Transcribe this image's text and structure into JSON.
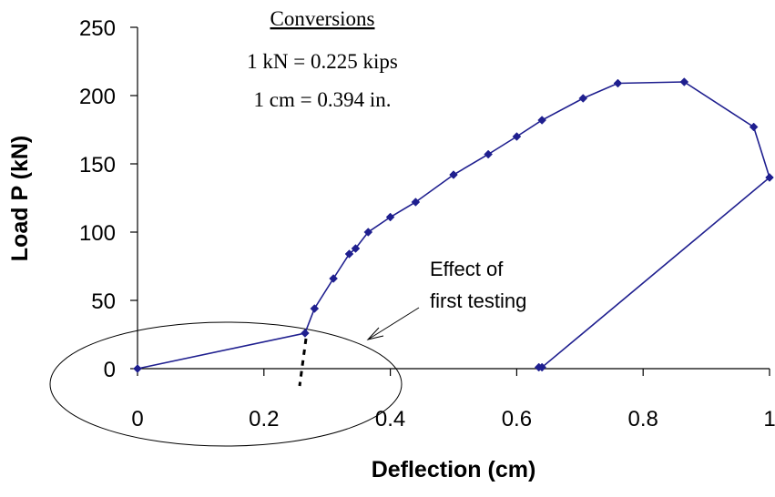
{
  "chart_data": {
    "type": "scatter",
    "xlabel": "Deflection (cm)",
    "ylabel": "Load P (kN)",
    "xlim": [
      0,
      1
    ],
    "ylim": [
      0,
      250
    ],
    "xticks": [
      "0",
      "0.2",
      "0.4",
      "0.6",
      "0.8",
      "1"
    ],
    "yticks": [
      "0",
      "50",
      "100",
      "150",
      "200",
      "250"
    ],
    "grid": false,
    "legend": "none",
    "series": [
      {
        "color": "#1f1f8f",
        "marker": "diamond",
        "points": [
          [
            0.0,
            0
          ],
          [
            0.265,
            26
          ],
          [
            0.28,
            44
          ],
          [
            0.31,
            66
          ],
          [
            0.335,
            84
          ],
          [
            0.345,
            88
          ],
          [
            0.365,
            100
          ],
          [
            0.4,
            111
          ],
          [
            0.44,
            122
          ],
          [
            0.5,
            142
          ],
          [
            0.555,
            157
          ],
          [
            0.6,
            170
          ],
          [
            0.64,
            182
          ],
          [
            0.705,
            198
          ],
          [
            0.76,
            209
          ],
          [
            0.865,
            210
          ],
          [
            0.975,
            177
          ],
          [
            1.0,
            140
          ],
          [
            0.64,
            1
          ],
          [
            0.635,
            1
          ]
        ]
      }
    ],
    "conversions": {
      "heading": "Conversions",
      "line1": "1 kN = 0.225 kips",
      "line2": "1 cm = 0.394 in."
    },
    "annotation": {
      "line1": "Effect of",
      "line2": "first testing"
    }
  }
}
